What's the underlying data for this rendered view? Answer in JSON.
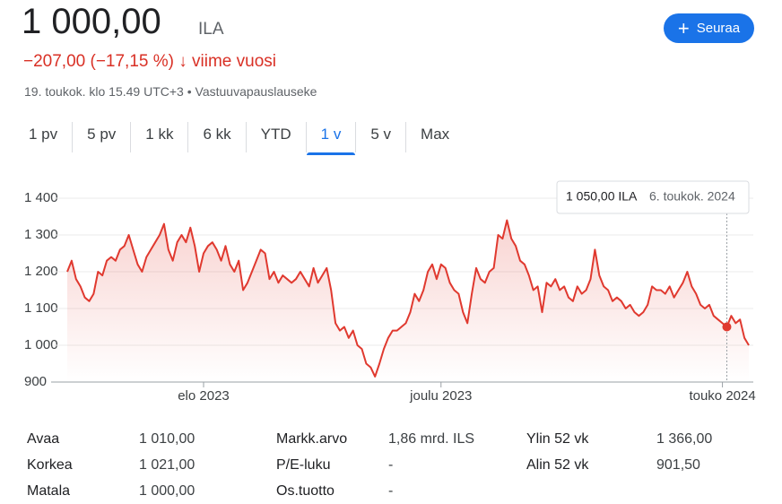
{
  "header": {
    "price": "1 000,00",
    "currency": "ILA",
    "change": "−207,00 (−17,15 %)",
    "period": "viime vuosi",
    "timestamp": "19. toukok. klo 15.49 UTC+3",
    "disclaimer": "Vastuuvapauslauseke",
    "follow_button": "Seuraa"
  },
  "tabs": [
    "1 pv",
    "5 pv",
    "1 kk",
    "6 kk",
    "YTD",
    "1 v",
    "5 v",
    "Max"
  ],
  "selected_tab": "1 v",
  "tooltip": {
    "value": "1 050,00 ILA",
    "date": "6. toukok. 2024"
  },
  "chart_data": {
    "type": "line",
    "color": "#e0392f",
    "ylim": [
      900,
      1400
    ],
    "yticks": [
      900,
      {
        "value": 1000,
        "label": "1 000"
      },
      {
        "value": 1100,
        "label": "1 100"
      },
      {
        "value": 1200,
        "label": "1 200"
      },
      {
        "value": 1300,
        "label": "1 300"
      },
      {
        "value": 1400,
        "label": "1 400"
      }
    ],
    "grid": true,
    "categories": [
      null,
      null,
      null,
      null,
      null,
      null,
      null,
      null,
      null,
      null,
      null,
      null,
      null,
      null,
      null,
      null,
      null,
      null,
      null,
      null,
      null,
      null,
      null,
      null,
      null,
      null,
      null,
      null,
      null,
      null,
      null,
      "elo 2023",
      null,
      null,
      null,
      null,
      null,
      null,
      null,
      null,
      null,
      null,
      null,
      null,
      null,
      null,
      null,
      null,
      null,
      null,
      null,
      null,
      null,
      null,
      null,
      null,
      null,
      null,
      null,
      null,
      null,
      null,
      null,
      null,
      null,
      null,
      null,
      null,
      null,
      null,
      null,
      null,
      null,
      null,
      null,
      null,
      null,
      null,
      null,
      null,
      null,
      null,
      null,
      null,
      null,
      "joulu 2023",
      null,
      null,
      null,
      null,
      null,
      null,
      null,
      null,
      null,
      null,
      null,
      null,
      null,
      null,
      null,
      null,
      null,
      null,
      null,
      null,
      null,
      null,
      null,
      null,
      null,
      null,
      null,
      null,
      null,
      null,
      null,
      null,
      null,
      null,
      null,
      null,
      null,
      null,
      null,
      null,
      null,
      null,
      null,
      null,
      null,
      null,
      null,
      null,
      null,
      null,
      null,
      null,
      null,
      null,
      null,
      null,
      null,
      null,
      null,
      null,
      null,
      null,
      null,
      "touko 2024",
      null,
      null,
      null,
      null,
      null,
      null
    ],
    "values": [
      1200,
      1230,
      1180,
      1160,
      1130,
      1120,
      1140,
      1200,
      1190,
      1230,
      1240,
      1230,
      1260,
      1270,
      1300,
      1260,
      1220,
      1200,
      1240,
      1260,
      1280,
      1300,
      1330,
      1260,
      1230,
      1280,
      1300,
      1280,
      1320,
      1270,
      1200,
      1250,
      1270,
      1280,
      1260,
      1230,
      1270,
      1220,
      1200,
      1230,
      1150,
      1170,
      1200,
      1230,
      1260,
      1250,
      1180,
      1200,
      1170,
      1190,
      1180,
      1170,
      1180,
      1200,
      1180,
      1160,
      1210,
      1170,
      1190,
      1210,
      1150,
      1060,
      1040,
      1050,
      1020,
      1040,
      1000,
      990,
      950,
      940,
      915,
      950,
      990,
      1020,
      1040,
      1040,
      1050,
      1060,
      1090,
      1140,
      1120,
      1150,
      1200,
      1220,
      1180,
      1220,
      1210,
      1170,
      1150,
      1140,
      1090,
      1060,
      1140,
      1210,
      1180,
      1170,
      1200,
      1210,
      1300,
      1290,
      1340,
      1290,
      1270,
      1230,
      1220,
      1190,
      1150,
      1160,
      1090,
      1170,
      1160,
      1180,
      1150,
      1160,
      1130,
      1120,
      1160,
      1140,
      1150,
      1180,
      1260,
      1190,
      1160,
      1150,
      1120,
      1130,
      1120,
      1100,
      1110,
      1090,
      1080,
      1090,
      1110,
      1160,
      1150,
      1150,
      1140,
      1160,
      1130,
      1150,
      1170,
      1200,
      1160,
      1140,
      1110,
      1100,
      1110,
      1080,
      1070,
      1060,
      1050,
      1080,
      1060,
      1070,
      1020,
      1000
    ]
  },
  "stats": [
    [
      [
        "Avaa",
        "1 010,00"
      ],
      [
        "Korkea",
        "1 021,00"
      ],
      [
        "Matala",
        "1 000,00"
      ]
    ],
    [
      [
        "Markk.arvo",
        "1,86 mrd. ILS"
      ],
      [
        "P/E-luku",
        "-"
      ],
      [
        "Os.tuotto",
        "-"
      ]
    ],
    [
      [
        "Ylin 52 vk",
        "1 366,00"
      ],
      [
        "Alin 52 vk",
        "901,50"
      ]
    ]
  ]
}
